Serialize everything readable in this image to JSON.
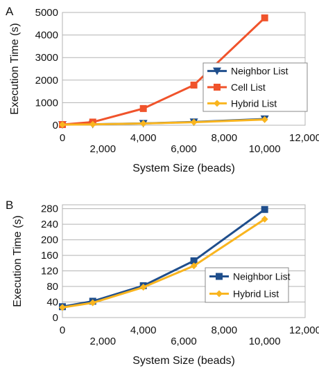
{
  "chart_data": [
    {
      "panel_label": "A",
      "type": "line",
      "xlabel": "System Size (beads)",
      "ylabel": "Execution Time (s)",
      "xlim": [
        0,
        12000
      ],
      "ylim": [
        0,
        5000
      ],
      "x_ticks": [
        "0",
        "2,000",
        "4,000",
        "6,000",
        "8,000",
        "10,000",
        "12,000"
      ],
      "y_ticks": [
        "0",
        "1000",
        "2000",
        "3000",
        "4000",
        "5000"
      ],
      "grid": "horizontal",
      "legend_position": "right",
      "x": [
        0,
        1500,
        4000,
        6500,
        10000
      ],
      "series": [
        {
          "name": "Neighbor List",
          "color": "#1f4e8c",
          "marker": "triangle-down",
          "values": [
            28,
            42,
            80,
            145,
            278
          ]
        },
        {
          "name": "Cell List",
          "color": "#f0532b",
          "marker": "square",
          "values": [
            30,
            140,
            740,
            1780,
            4760
          ]
        },
        {
          "name": "Hybrid List",
          "color": "#f9b51f",
          "marker": "diamond",
          "values": [
            26,
            38,
            76,
            133,
            253
          ]
        }
      ]
    },
    {
      "panel_label": "B",
      "type": "line",
      "xlabel": "System Size (beads)",
      "ylabel": "Execution Time (s)",
      "xlim": [
        0,
        12000
      ],
      "ylim": [
        0,
        290
      ],
      "x_ticks": [
        "0",
        "2,000",
        "4,000",
        "6,000",
        "8,000",
        "10,000",
        "12,000"
      ],
      "y_ticks": [
        "0",
        "40",
        "80",
        "120",
        "160",
        "200",
        "240",
        "280"
      ],
      "grid": "horizontal",
      "legend_position": "right",
      "x": [
        0,
        1500,
        4000,
        6500,
        10000
      ],
      "series": [
        {
          "name": "Neighbor List",
          "color": "#1f4e8c",
          "marker": "square",
          "values": [
            28,
            42,
            82,
            146,
            278
          ]
        },
        {
          "name": "Hybrid List",
          "color": "#f9b51f",
          "marker": "diamond",
          "values": [
            26,
            38,
            78,
            133,
            253
          ]
        }
      ]
    }
  ]
}
